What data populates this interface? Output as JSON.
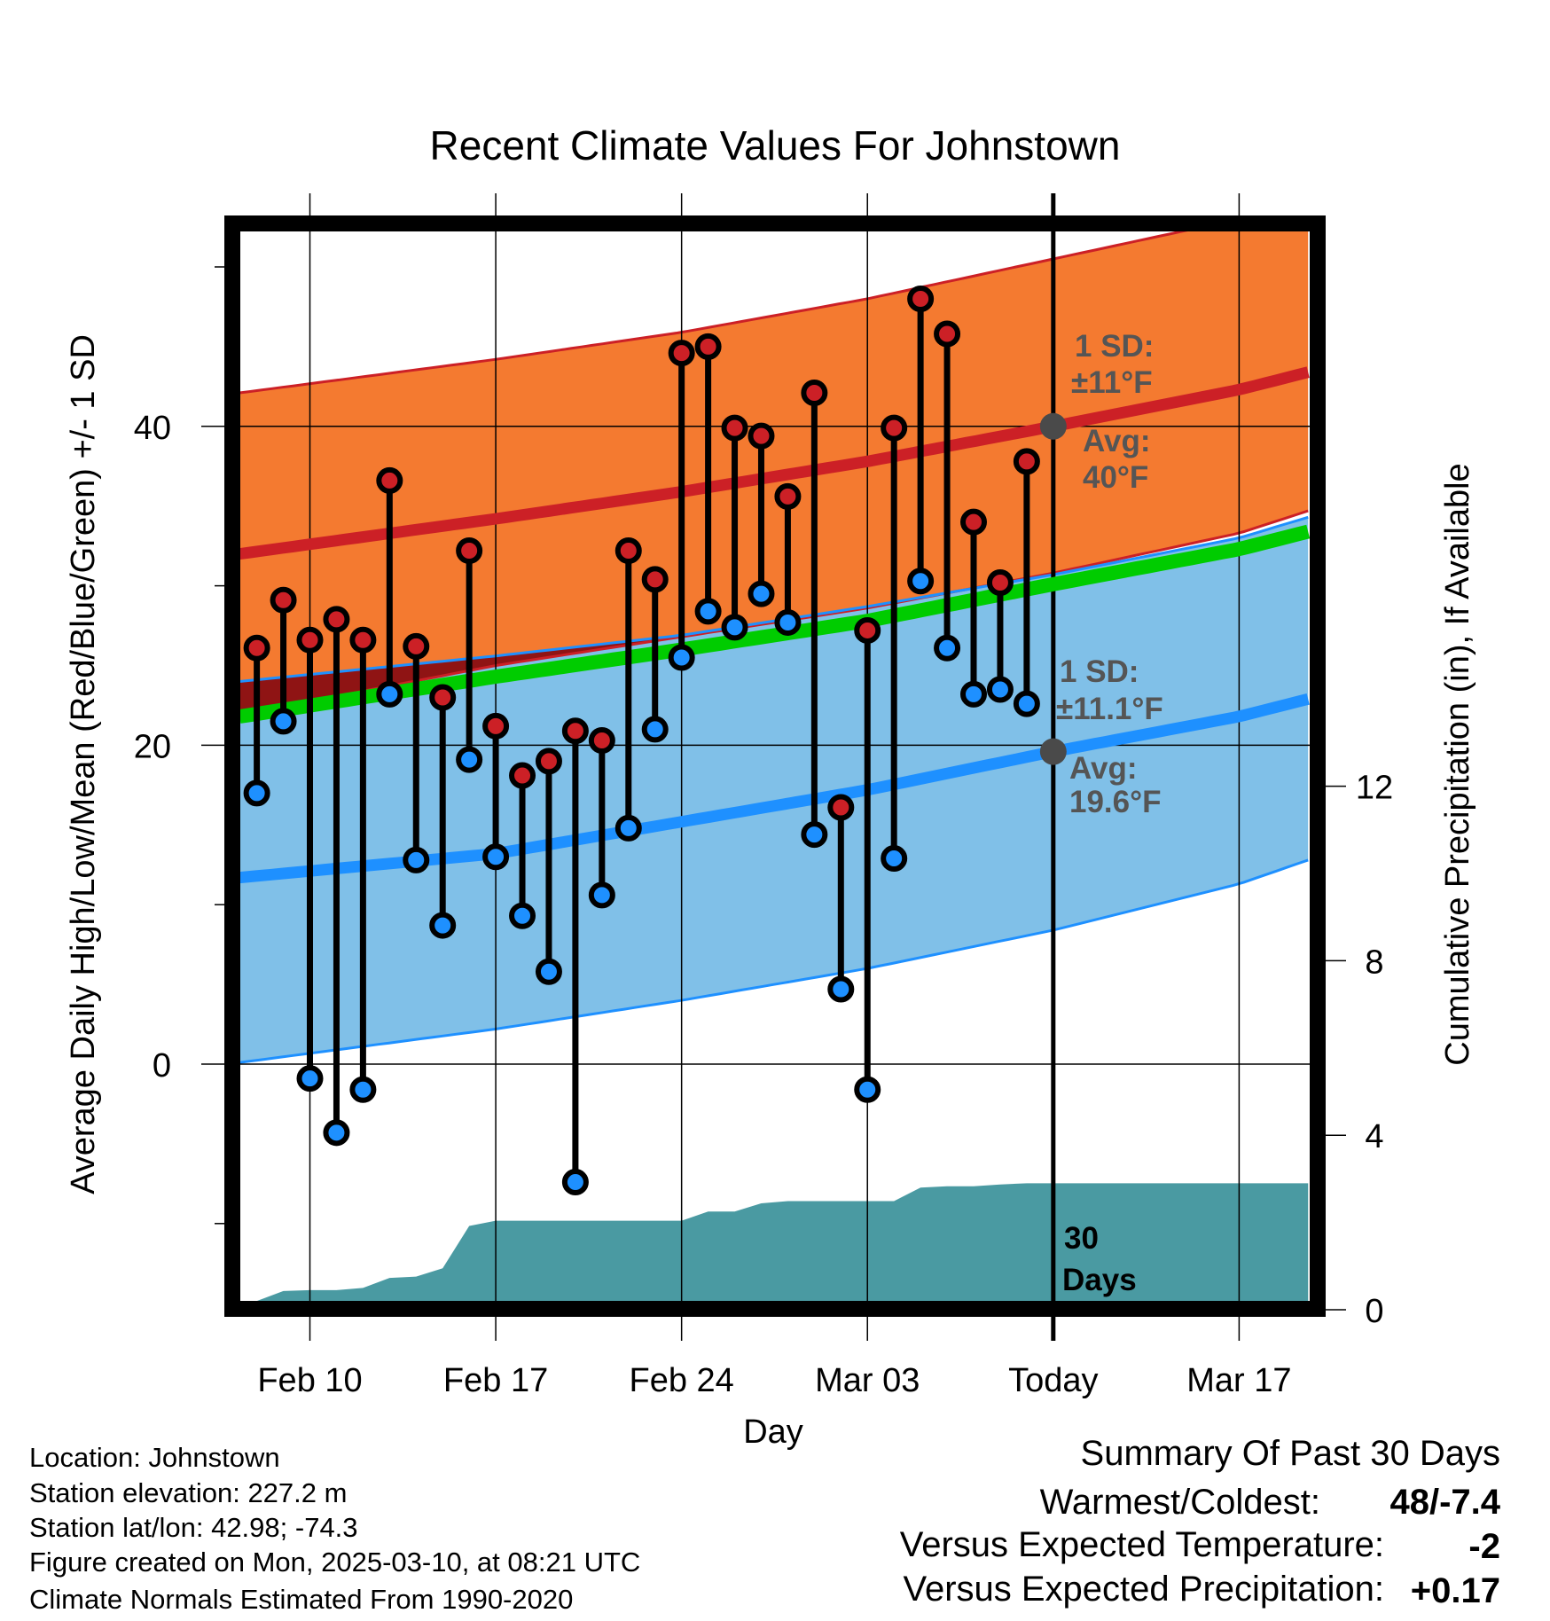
{
  "chart_data": {
    "type": "line",
    "title": "Recent Climate Values For Johnstown",
    "xlabel": "Day",
    "ylabel": "Average Daily High/Low/Mean (Red/Blue/Green) +/- 1 SD",
    "y2label": "Cumulative Precipitation (in), If Available",
    "ylim": [
      -14.9,
      52.4
    ],
    "y2lim": [
      0,
      24.8
    ],
    "xlim_days_from_feb10": [
      -2.65,
      37.6
    ],
    "x_ticks": [
      {
        "day": 0,
        "label": "Feb 10"
      },
      {
        "day": 7,
        "label": "Feb 17"
      },
      {
        "day": 14,
        "label": "Feb 24"
      },
      {
        "day": 21,
        "label": "Mar 03"
      },
      {
        "day": 28,
        "label": "Today"
      },
      {
        "day": 35,
        "label": "Mar 17"
      }
    ],
    "y_ticks": [
      {
        "v": 40,
        "label": "40"
      },
      {
        "v": 20,
        "label": "20"
      },
      {
        "v": 0,
        "label": "0"
      }
    ],
    "y_minor_ticks": [
      50,
      30,
      10,
      -10
    ],
    "y2_ticks": [
      {
        "v": 12,
        "label": "12"
      },
      {
        "v": 8,
        "label": "8"
      },
      {
        "v": 4,
        "label": "4"
      },
      {
        "v": 0,
        "label": "0"
      }
    ],
    "today_day": 28,
    "observed": {
      "dates": [
        "Feb 08",
        "Feb 09",
        "Feb 10",
        "Feb 11",
        "Feb 12",
        "Feb 13",
        "Feb 14",
        "Feb 15",
        "Feb 16",
        "Feb 17",
        "Feb 18",
        "Feb 19",
        "Feb 20",
        "Feb 21",
        "Feb 22",
        "Feb 23",
        "Feb 24",
        "Feb 25",
        "Feb 26",
        "Feb 27",
        "Feb 28",
        "Mar 01",
        "Mar 02",
        "Mar 03",
        "Mar 04",
        "Mar 05",
        "Mar 06",
        "Mar 07",
        "Mar 08",
        "Mar 09"
      ],
      "start_day": -2,
      "highs": [
        26.1,
        29.1,
        26.6,
        27.9,
        26.6,
        36.6,
        26.2,
        23.0,
        32.2,
        21.2,
        18.1,
        19.0,
        20.9,
        20.3,
        32.2,
        30.4,
        44.6,
        45.0,
        39.9,
        39.4,
        35.6,
        42.1,
        16.1,
        27.2,
        39.9,
        48.0,
        45.8,
        34.0,
        30.2,
        37.8
      ],
      "lows": [
        17.0,
        21.5,
        -0.9,
        -4.3,
        -1.6,
        23.2,
        12.8,
        8.7,
        19.1,
        13.0,
        9.3,
        5.8,
        -7.4,
        10.6,
        14.8,
        21.0,
        25.5,
        28.4,
        27.4,
        29.5,
        27.7,
        14.4,
        4.7,
        -1.6,
        12.9,
        30.3,
        26.1,
        23.2,
        23.5,
        22.6
      ]
    },
    "normals": {
      "days": [
        -2.65,
        7,
        14,
        21,
        28,
        35,
        37.6
      ],
      "high_upper": [
        42.1,
        44.2,
        45.9,
        48.0,
        50.5,
        53.0,
        54.0
      ],
      "high_avg": [
        32.0,
        34.2,
        35.9,
        37.8,
        40.0,
        42.3,
        43.4
      ],
      "high_lower": [
        21.9,
        25.0,
        26.8,
        28.6,
        30.8,
        33.3,
        34.7
      ],
      "low_upper": [
        24.0,
        25.6,
        26.9,
        28.7,
        30.7,
        33.0,
        34.3
      ],
      "low_avg": [
        11.7,
        13.2,
        15.2,
        17.2,
        19.6,
        21.8,
        22.9
      ],
      "low_lower": [
        0.1,
        2.2,
        4.0,
        6.0,
        8.4,
        11.3,
        12.8
      ],
      "mean": [
        21.8,
        24.3,
        26.0,
        27.8,
        30.1,
        32.3,
        33.4
      ]
    },
    "precip": {
      "days": [
        -2.65,
        -2,
        -1,
        0,
        1,
        2,
        3,
        4,
        5,
        6,
        7,
        8,
        9,
        10,
        11,
        12,
        13,
        14,
        15,
        16,
        17,
        18,
        19,
        20,
        21,
        22,
        23,
        24,
        25,
        26,
        27,
        37.6
      ],
      "cumulative": [
        0,
        0.2,
        0.43,
        0.45,
        0.45,
        0.5,
        0.73,
        0.76,
        0.95,
        1.92,
        2.04,
        2.04,
        2.04,
        2.04,
        2.04,
        2.04,
        2.04,
        2.04,
        2.25,
        2.25,
        2.44,
        2.49,
        2.49,
        2.49,
        2.49,
        2.49,
        2.8,
        2.83,
        2.83,
        2.87,
        2.9,
        2.9
      ]
    },
    "annotations": {
      "high_sd_label": "1 SD:",
      "high_sd_value": "±11°F",
      "high_avg_label": "Avg:",
      "high_avg_value": "40°F",
      "high_avg": 40,
      "low_sd_label": "1 SD:",
      "low_sd_value": "±11.1°F",
      "low_avg_label": "Avg:",
      "low_avg_value": "19.6°F",
      "low_avg": 19.6,
      "days_label_1": "30",
      "days_label_2": "Days"
    },
    "colors": {
      "high_band": "#f47a30",
      "high_line": "#cc2026",
      "low_band": "#80c0e8",
      "low_line": "#1e90ff",
      "mean_line": "#00cc00",
      "overlap": "#8f1414",
      "precip": "#4a9aa2",
      "high_dot": "#cc2026",
      "low_dot": "#1e90ff"
    }
  },
  "footer": {
    "location": "Location: Johnstown",
    "elevation": "Station elevation: 227.2 m",
    "latlon": "Station lat/lon: 42.98; -74.3",
    "created": "Figure created on Mon, 2025-03-10, at 08:21 UTC",
    "normals": "Climate Normals Estimated From 1990-2020"
  },
  "summary": {
    "title": "Summary Of Past 30 Days",
    "warmest_label": "Warmest/Coldest:",
    "warmest_value": "48/-7.4",
    "temp_label": "Versus Expected Temperature:",
    "temp_value": "-2",
    "temp_color": "#1e90ff",
    "precip_label": "Versus Expected Precipitation:",
    "precip_value": "+0.17",
    "precip_color": "#00bb00"
  }
}
